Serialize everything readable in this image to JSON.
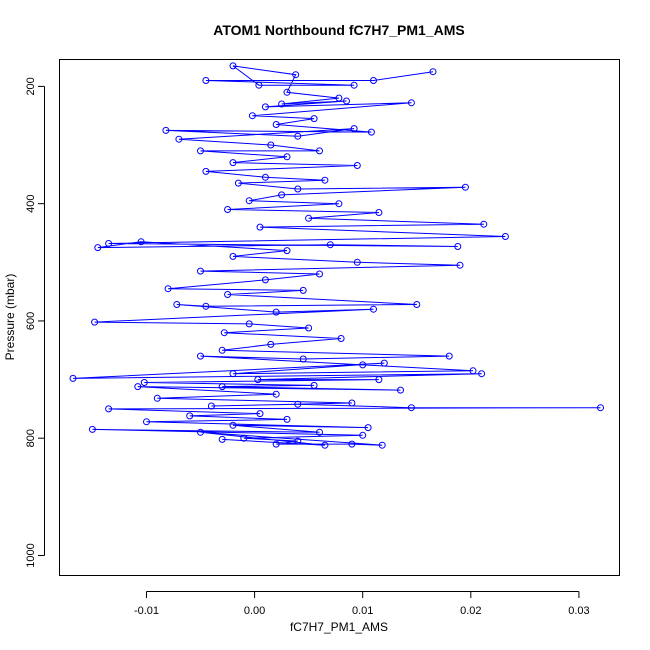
{
  "chart_data": {
    "type": "line",
    "title": "ATOM1 Northbound fC7H7_PM1_AMS",
    "xlabel": "fC7H7_PM1_AMS",
    "ylabel": "Pressure (mbar)",
    "xlim": [
      -0.018,
      0.0338
    ],
    "ylim": [
      1035,
      155
    ],
    "y_reversed": true,
    "x_ticks": [
      {
        "value": -0.01,
        "label": "-0.01"
      },
      {
        "value": 0.0,
        "label": "0.00"
      },
      {
        "value": 0.01,
        "label": "0.01"
      },
      {
        "value": 0.02,
        "label": "0.02"
      },
      {
        "value": 0.03,
        "label": "0.03"
      }
    ],
    "y_ticks": [
      {
        "value": 200,
        "label": "200"
      },
      {
        "value": 400,
        "label": "400"
      },
      {
        "value": 600,
        "label": "600"
      },
      {
        "value": 800,
        "label": "800"
      },
      {
        "value": 1000,
        "label": "1000"
      }
    ],
    "series": [
      {
        "color": "#0000ff",
        "style": "points-and-lines",
        "points": [
          [
            0.0165,
            175
          ],
          [
            0.011,
            190
          ],
          [
            -0.0045,
            190
          ],
          [
            0.0092,
            198
          ],
          [
            0.0004,
            198
          ],
          [
            -0.002,
            165
          ],
          [
            0.0038,
            180
          ],
          [
            0.003,
            210
          ],
          [
            0.0078,
            220
          ],
          [
            0.0025,
            230
          ],
          [
            0.0085,
            225
          ],
          [
            0.001,
            235
          ],
          [
            0.0145,
            228
          ],
          [
            -0.0002,
            250
          ],
          [
            0.0055,
            255
          ],
          [
            0.002,
            265
          ],
          [
            0.0108,
            278
          ],
          [
            -0.0082,
            275
          ],
          [
            0.004,
            285
          ],
          [
            0.0092,
            272
          ],
          [
            -0.007,
            290
          ],
          [
            0.0015,
            300
          ],
          [
            0.006,
            310
          ],
          [
            -0.005,
            310
          ],
          [
            0.003,
            320
          ],
          [
            -0.002,
            330
          ],
          [
            0.0095,
            335
          ],
          [
            -0.0045,
            345
          ],
          [
            0.001,
            355
          ],
          [
            0.0065,
            360
          ],
          [
            -0.0015,
            365
          ],
          [
            0.004,
            375
          ],
          [
            0.0195,
            372
          ],
          [
            0.0025,
            385
          ],
          [
            -0.0005,
            395
          ],
          [
            0.0078,
            400
          ],
          [
            -0.0025,
            410
          ],
          [
            0.0115,
            415
          ],
          [
            0.005,
            425
          ],
          [
            0.0212,
            435
          ],
          [
            0.0005,
            440
          ],
          [
            0.0232,
            456
          ],
          [
            -0.0135,
            468
          ],
          [
            0.0188,
            473
          ],
          [
            0.007,
            470
          ],
          [
            -0.0145,
            475
          ],
          [
            -0.0105,
            465
          ],
          [
            0.003,
            480
          ],
          [
            -0.002,
            490
          ],
          [
            0.0095,
            500
          ],
          [
            0.019,
            505
          ],
          [
            -0.005,
            515
          ],
          [
            0.006,
            520
          ],
          [
            0.001,
            530
          ],
          [
            -0.008,
            545
          ],
          [
            0.0045,
            548
          ],
          [
            -0.0025,
            555
          ],
          [
            0.015,
            572
          ],
          [
            -0.0045,
            575
          ],
          [
            -0.0072,
            572
          ],
          [
            0.002,
            585
          ],
          [
            0.011,
            580
          ],
          [
            -0.0148,
            602
          ],
          [
            -0.0005,
            605
          ],
          [
            0.005,
            612
          ],
          [
            -0.0028,
            620
          ],
          [
            0.008,
            630
          ],
          [
            0.0015,
            640
          ],
          [
            -0.003,
            650
          ],
          [
            0.018,
            660
          ],
          [
            0.0045,
            665
          ],
          [
            -0.005,
            660
          ],
          [
            0.01,
            675
          ],
          [
            0.0202,
            685
          ],
          [
            -0.002,
            690
          ],
          [
            0.012,
            672
          ],
          [
            -0.0168,
            698
          ],
          [
            0.021,
            690
          ],
          [
            0.0003,
            700
          ],
          [
            0.0115,
            700
          ],
          [
            -0.0102,
            705
          ],
          [
            0.0055,
            710
          ],
          [
            -0.003,
            712
          ],
          [
            0.0135,
            718
          ],
          [
            -0.0108,
            712
          ],
          [
            0.002,
            725
          ],
          [
            -0.009,
            732
          ],
          [
            0.009,
            740
          ],
          [
            -0.004,
            745
          ],
          [
            0.004,
            742
          ],
          [
            0.0145,
            748
          ],
          [
            0.032,
            748
          ],
          [
            -0.0135,
            750
          ],
          [
            0.0005,
            758
          ],
          [
            -0.006,
            762
          ],
          [
            0.003,
            768
          ],
          [
            -0.01,
            772
          ],
          [
            0.0105,
            782
          ],
          [
            -0.002,
            778
          ],
          [
            0.006,
            790
          ],
          [
            -0.015,
            785
          ],
          [
            0.01,
            795
          ],
          [
            -0.001,
            800
          ],
          [
            0.004,
            805
          ],
          [
            0.002,
            810
          ],
          [
            0.009,
            810
          ],
          [
            0.0118,
            812
          ],
          [
            -0.005,
            790
          ],
          [
            0.0065,
            812
          ],
          [
            -0.003,
            802
          ]
        ]
      }
    ]
  }
}
